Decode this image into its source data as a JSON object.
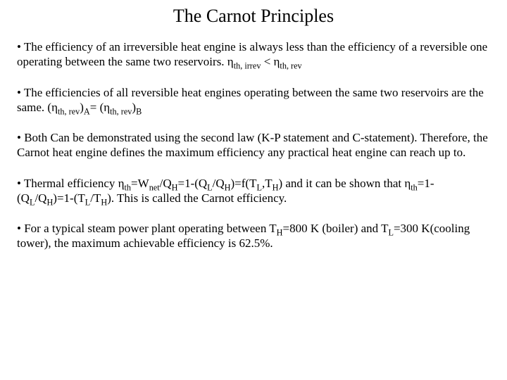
{
  "title": "The Carnot Principles",
  "bullets": {
    "b1_pre": "• The efficiency of an irreversible heat engine is always less than the efficiency of a reversible one operating between the same two reservoirs.  η",
    "b1_sub1": "th, irrev",
    "b1_mid": " < η",
    "b1_sub2": "th, rev",
    "b2_pre": "• The efficiencies of all reversible heat engines operating between the same two reservoirs are the same. (η",
    "b2_sub1": "th, rev",
    "b2_mid1": ")",
    "b2_sub2": "A",
    "b2_mid2": "= (η",
    "b2_sub3": "th, rev",
    "b2_mid3": ")",
    "b2_sub4": "B",
    "b3": "• Both Can be demonstrated using the second law (K-P statement and C-statement).  Therefore, the Carnot heat engine defines the maximum efficiency any practical heat engine can reach up to.",
    "b4_pre": "• Thermal efficiency η",
    "b4_sub1": "th",
    "b4_mid1": "=W",
    "b4_sub2": "net",
    "b4_mid2": "/Q",
    "b4_sub3": "H",
    "b4_mid3": "=1-(Q",
    "b4_sub4": "L",
    "b4_mid4": "/Q",
    "b4_sub5": "H",
    "b4_mid5": ")=f(T",
    "b4_sub6": "L",
    "b4_mid6": ",T",
    "b4_sub7": "H",
    "b4_mid7": ") and it can be shown that η",
    "b4_sub8": "th",
    "b4_mid8": "=1-(Q",
    "b4_sub9": "L",
    "b4_mid9": "/Q",
    "b4_sub10": "H",
    "b4_mid10": ")=1-(T",
    "b4_sub11": "L",
    "b4_mid11": "/T",
    "b4_sub12": "H",
    "b4_mid12": ").  This is called the Carnot efficiency.",
    "b5_pre": "• For a typical steam power plant operating between T",
    "b5_sub1": "H",
    "b5_mid1": "=800 K (boiler) and T",
    "b5_sub2": "L",
    "b5_mid2": "=300 K(cooling tower), the maximum achievable efficiency is 62.5%."
  }
}
